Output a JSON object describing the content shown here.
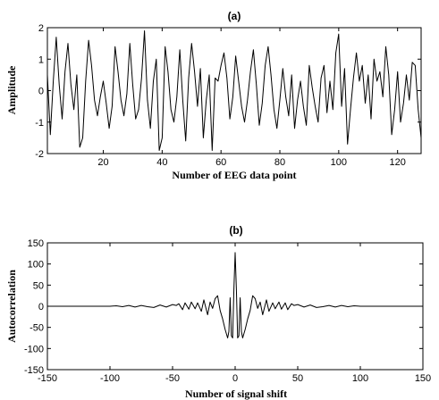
{
  "chart_data": [
    {
      "type": "line",
      "title": "(a)",
      "xlabel": "Number of EEG data point",
      "ylabel": "Amplitude",
      "xlim": [
        1,
        128
      ],
      "ylim": [
        -2,
        2
      ],
      "xticks": [
        20,
        40,
        60,
        80,
        100,
        120
      ],
      "yticks": [
        -2,
        -1,
        0,
        1,
        2
      ],
      "grid": false,
      "series": [
        {
          "x": [
            1,
            2,
            3,
            4,
            5,
            6,
            7,
            8,
            9,
            10,
            11,
            12,
            13,
            14,
            15,
            16,
            17,
            18,
            19,
            20,
            21,
            22,
            23,
            24,
            25,
            26,
            27,
            28,
            29,
            30,
            31,
            32,
            33,
            34,
            35,
            36,
            37,
            38,
            39,
            40,
            41,
            42,
            43,
            44,
            45,
            46,
            47,
            48,
            49,
            50,
            51,
            52,
            53,
            54,
            55,
            56,
            57,
            58,
            59,
            60,
            61,
            62,
            63,
            64,
            65,
            66,
            67,
            68,
            69,
            70,
            71,
            72,
            73,
            74,
            75,
            76,
            77,
            78,
            79,
            80,
            81,
            82,
            83,
            84,
            85,
            86,
            87,
            88,
            89,
            90,
            91,
            92,
            93,
            94,
            95,
            96,
            97,
            98,
            99,
            100,
            101,
            102,
            103,
            104,
            105,
            106,
            107,
            108,
            109,
            110,
            111,
            112,
            113,
            114,
            115,
            116,
            117,
            118,
            119,
            120,
            121,
            122,
            123,
            124,
            125,
            126,
            127,
            128
          ],
          "values": [
            0.5,
            -1.4,
            0.3,
            1.7,
            0.2,
            -0.9,
            0.6,
            1.5,
            0.2,
            -0.6,
            0.5,
            -1.8,
            -1.5,
            0.3,
            1.6,
            0.8,
            -0.3,
            -0.8,
            -0.2,
            0.3,
            -0.4,
            -1.2,
            -0.5,
            1.4,
            0.6,
            -0.3,
            -0.8,
            -0.1,
            1.5,
            0.2,
            -0.9,
            -0.6,
            0.4,
            1.9,
            -0.3,
            -1.2,
            0.3,
            1.0,
            -1.9,
            -1.5,
            1.4,
            0.6,
            -0.6,
            -1.0,
            -0.2,
            1.3,
            -0.3,
            -1.6,
            0.4,
            1.5,
            0.6,
            -0.5,
            0.7,
            -1.5,
            -0.3,
            0.5,
            -1.9,
            0.4,
            0.3,
            0.8,
            1.2,
            0.4,
            -0.9,
            -0.2,
            1.1,
            0.3,
            -0.5,
            -1.0,
            -0.3,
            0.6,
            1.3,
            0.2,
            -1.1,
            -0.4,
            0.8,
            1.4,
            0.5,
            -0.6,
            -1.2,
            -0.3,
            0.7,
            -0.2,
            -0.8,
            0.5,
            -1.2,
            -0.3,
            0.3,
            -0.5,
            -1.1,
            0.8,
            0.1,
            -0.5,
            -1.0,
            0.4,
            0.8,
            -0.7,
            0.3,
            -0.6,
            1.2,
            1.8,
            -0.5,
            0.7,
            -1.7,
            -0.6,
            0.4,
            1.2,
            0.3,
            0.8,
            -0.4,
            0.5,
            -0.9,
            1.0,
            0.3,
            0.6,
            -0.2,
            1.4,
            0.5,
            -1.4,
            -0.6,
            0.6,
            -1.0,
            -0.4,
            0.5,
            -0.3,
            0.9,
            0.8,
            -0.6,
            -1.5
          ]
        }
      ]
    },
    {
      "type": "line",
      "title": "(b)",
      "xlabel": "Number of signal shift",
      "ylabel": "Autocorrelation",
      "xlim": [
        -150,
        150
      ],
      "ylim": [
        -150,
        150
      ],
      "xticks": [
        -150,
        -100,
        -50,
        0,
        50,
        100,
        150
      ],
      "yticks": [
        -150,
        -100,
        -50,
        0,
        50,
        100,
        150
      ],
      "grid": false,
      "series": [
        {
          "x": [
            -150,
            -100,
            -95,
            -90,
            -85,
            -80,
            -75,
            -70,
            -65,
            -60,
            -55,
            -50,
            -47,
            -45,
            -42,
            -40,
            -37,
            -35,
            -32,
            -30,
            -27,
            -25,
            -22,
            -20,
            -18,
            -16,
            -14,
            -12,
            -10,
            -8,
            -6,
            -5,
            -4,
            -3,
            -2,
            -1,
            0,
            1,
            2,
            3,
            4,
            5,
            6,
            8,
            10,
            12,
            14,
            16,
            18,
            20,
            22,
            25,
            27,
            30,
            32,
            35,
            37,
            40,
            42,
            45,
            47,
            50,
            55,
            60,
            65,
            70,
            75,
            80,
            85,
            90,
            95,
            100,
            150
          ],
          "values": [
            0,
            0,
            1,
            -1,
            2,
            -2,
            2,
            -1,
            -3,
            3,
            -2,
            4,
            2,
            6,
            -8,
            8,
            -7,
            10,
            -6,
            8,
            -12,
            15,
            -20,
            10,
            -5,
            18,
            25,
            -10,
            -30,
            -55,
            -75,
            -60,
            20,
            -70,
            -75,
            40,
            127,
            40,
            -75,
            -70,
            20,
            -60,
            -75,
            -55,
            -30,
            -10,
            25,
            18,
            -5,
            10,
            -20,
            15,
            -12,
            8,
            -6,
            10,
            -7,
            8,
            -8,
            6,
            2,
            4,
            -2,
            3,
            -3,
            -1,
            2,
            -2,
            2,
            -1,
            1,
            0,
            0
          ]
        }
      ]
    }
  ]
}
